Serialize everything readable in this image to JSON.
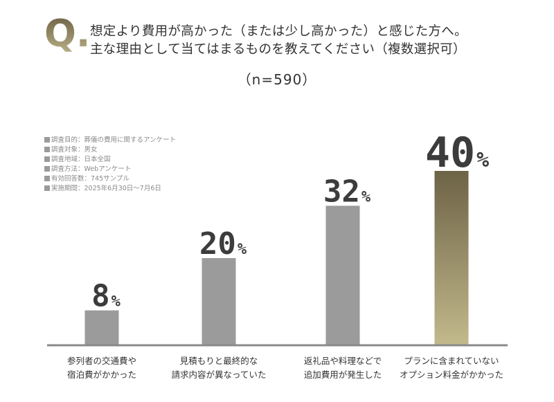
{
  "question": {
    "mark": "Q.",
    "line1": "想定より費用が高かった（または少し高かった）と感じた方へ。",
    "line2": "主な理由として当てはまるものを教えてください（複数選択可）"
  },
  "sample_size": "（n=590）",
  "survey_info": [
    "調査目的：葬儀の費用に関するアンケート",
    "調査対象：男女",
    "調査地域：日本全国",
    "調査方法：Webアンケート",
    "有効回答数：745サンプル",
    "実施期間：2025年6月30日〜7月6日"
  ],
  "chart_data": {
    "type": "bar",
    "categories": [
      [
        "参列者の交通費や",
        "宿泊費がかかった"
      ],
      [
        "見積もりと最終的な",
        "請求内容が異なっていた"
      ],
      [
        "返礼品や料理などで",
        "追加費用が発生した"
      ],
      [
        "プランに含まれていない",
        "オプション料金がかかった"
      ]
    ],
    "values": [
      8,
      20,
      32,
      40
    ],
    "value_suffix": "%",
    "colors": {
      "bar_default": "#9b9b9b",
      "bar_highlight_top": "#6d6346",
      "bar_highlight_bottom": "#c2b98c",
      "baseline": "#8a8a8a",
      "label": "#3c3c3c"
    },
    "highlight_index": 3
  }
}
